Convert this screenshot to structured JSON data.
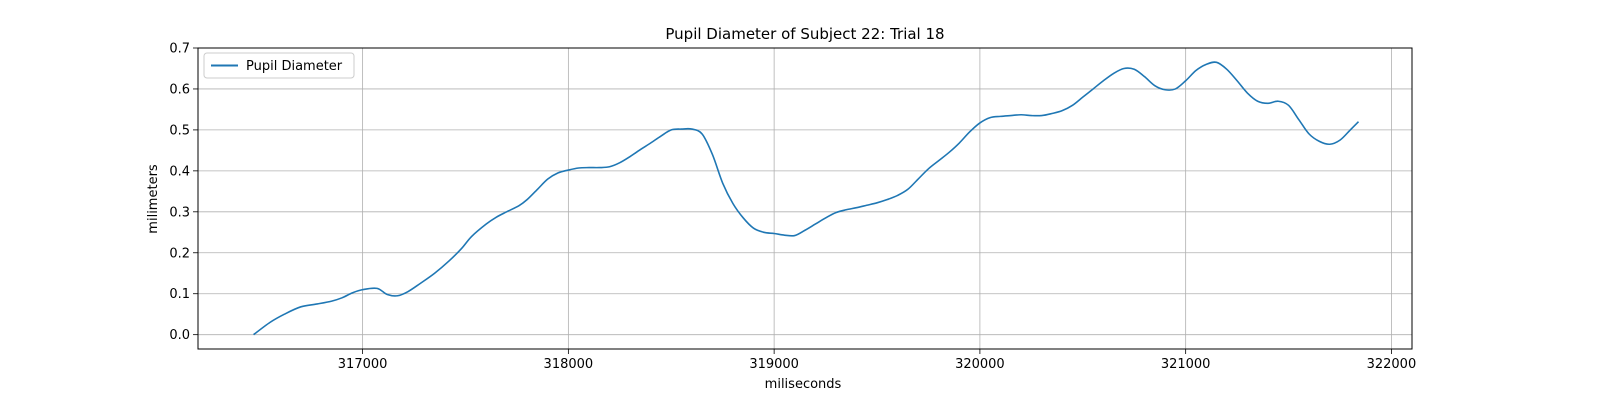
{
  "chart_data": {
    "type": "line",
    "title": "Pupil Diameter of Subject 22: Trial 18",
    "xlabel": "miliseconds",
    "ylabel": "milimeters",
    "xlim": [
      316200,
      322100
    ],
    "ylim": [
      -0.035,
      0.7
    ],
    "xticks": [
      317000,
      318000,
      319000,
      320000,
      321000,
      322000
    ],
    "yticks": [
      0.0,
      0.1,
      0.2,
      0.3,
      0.4,
      0.5,
      0.6,
      0.7
    ],
    "ytick_labels": [
      "0.0",
      "0.1",
      "0.2",
      "0.3",
      "0.4",
      "0.5",
      "0.6",
      "0.7"
    ],
    "grid": true,
    "legend": "upper-left",
    "series": [
      {
        "name": "Pupil Diameter",
        "color": "#1f77b4",
        "x": [
          316470,
          316550,
          316620,
          316700,
          316780,
          316850,
          316900,
          316950,
          317000,
          317070,
          317120,
          317170,
          317220,
          317280,
          317350,
          317420,
          317480,
          317530,
          317600,
          317650,
          317700,
          317760,
          317800,
          317850,
          317900,
          317950,
          318000,
          318050,
          318100,
          318150,
          318200,
          318250,
          318300,
          318350,
          318400,
          318450,
          318500,
          318550,
          318600,
          318650,
          318700,
          318750,
          318800,
          318850,
          318900,
          318950,
          319000,
          319050,
          319100,
          319150,
          319200,
          319250,
          319300,
          319350,
          319400,
          319450,
          319500,
          319550,
          319600,
          319650,
          319700,
          319750,
          319800,
          319850,
          319900,
          319950,
          320000,
          320050,
          320100,
          320150,
          320200,
          320250,
          320300,
          320350,
          320400,
          320450,
          320500,
          320550,
          320600,
          320650,
          320700,
          320750,
          320800,
          320850,
          320900,
          320950,
          321000,
          321050,
          321100,
          321150,
          321200,
          321250,
          321300,
          321350,
          321400,
          321450,
          321500,
          321550,
          321600,
          321650,
          321700,
          321750,
          321800,
          321840
        ],
        "y": [
          0.0,
          0.03,
          0.05,
          0.068,
          0.075,
          0.082,
          0.09,
          0.102,
          0.11,
          0.113,
          0.098,
          0.095,
          0.105,
          0.125,
          0.15,
          0.18,
          0.21,
          0.24,
          0.27,
          0.287,
          0.3,
          0.315,
          0.33,
          0.355,
          0.38,
          0.395,
          0.402,
          0.407,
          0.408,
          0.408,
          0.41,
          0.42,
          0.435,
          0.452,
          0.468,
          0.485,
          0.5,
          0.502,
          0.502,
          0.49,
          0.44,
          0.37,
          0.32,
          0.285,
          0.26,
          0.25,
          0.247,
          0.243,
          0.242,
          0.255,
          0.27,
          0.285,
          0.298,
          0.305,
          0.31,
          0.316,
          0.322,
          0.33,
          0.34,
          0.355,
          0.38,
          0.405,
          0.425,
          0.445,
          0.468,
          0.495,
          0.517,
          0.53,
          0.533,
          0.535,
          0.537,
          0.535,
          0.535,
          0.54,
          0.547,
          0.56,
          0.58,
          0.6,
          0.62,
          0.638,
          0.65,
          0.648,
          0.63,
          0.608,
          0.598,
          0.6,
          0.62,
          0.645,
          0.66,
          0.665,
          0.648,
          0.62,
          0.59,
          0.57,
          0.565,
          0.57,
          0.56,
          0.525,
          0.49,
          0.472,
          0.465,
          0.475,
          0.5,
          0.52
        ]
      }
    ]
  }
}
